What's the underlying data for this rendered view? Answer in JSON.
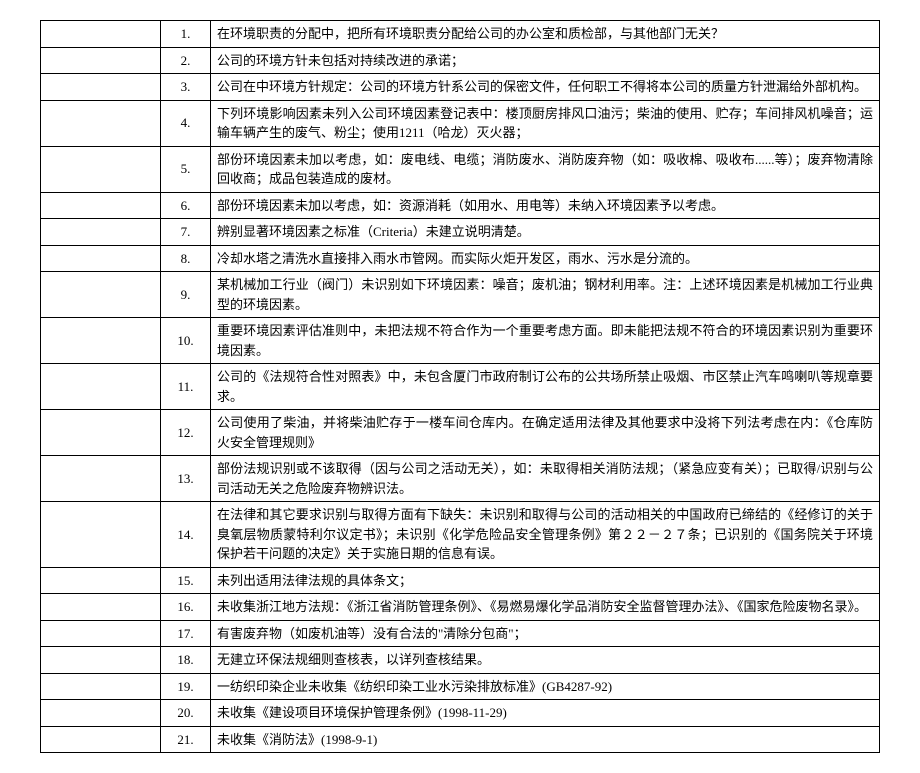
{
  "table": {
    "font_size_pt": 10,
    "border_color": "#000000",
    "background": "#ffffff",
    "text_color": "#000000",
    "rows": [
      {
        "num": "1.",
        "text": "在环境职责的分配中，把所有环境职责分配给公司的办公室和质检部，与其他部门无关？"
      },
      {
        "num": "2.",
        "text": "公司的环境方针未包括对持续改进的承诺；"
      },
      {
        "num": "3.",
        "text": "公司在中环境方针规定：公司的环境方针系公司的保密文件，任何职工不得将本公司的质量方针泄漏给外部机构。"
      },
      {
        "num": "4.",
        "text": "下列环境影响因素未列入公司环境因素登记表中：楼顶厨房排风口油污；柴油的使用、贮存；车间排风机噪音；运输车辆产生的废气、粉尘；使用1211（哈龙）灭火器；"
      },
      {
        "num": "5.",
        "text": "部份环境因素未加以考虑，如：废电线、电缆；消防废水、消防废弃物（如：吸收棉、吸收布......等）；废弃物清除回收商；成品包装造成的废材。"
      },
      {
        "num": "6.",
        "text": "部份环境因素未加以考虑，如：资源消耗（如用水、用电等）未纳入环境因素予以考虑。"
      },
      {
        "num": "7.",
        "text": "辨别显著环境因素之标准（Criteria）未建立说明清楚。"
      },
      {
        "num": "8.",
        "text": "冷却水塔之清洗水直接排入雨水市管网。而实际火炬开发区，雨水、污水是分流的。"
      },
      {
        "num": "9.",
        "text": "某机械加工行业（阀门）未识别如下环境因素：噪音；废机油；钢材利用率。注：上述环境因素是机械加工行业典型的环境因素。"
      },
      {
        "num": "10.",
        "text": "重要环境因素评估准则中，未把法规不符合作为一个重要考虑方面。即未能把法规不符合的环境因素识别为重要环境因素。"
      },
      {
        "num": "11.",
        "text": "公司的《法规符合性对照表》中，未包含厦门市政府制订公布的公共场所禁止吸烟、市区禁止汽车鸣喇叭等规章要求。"
      },
      {
        "num": "12.",
        "text": "公司使用了柴油，并将柴油贮存于一楼车间仓库内。在确定适用法律及其他要求中没将下列法考虑在内：《仓库防火安全管理规则》"
      },
      {
        "num": "13.",
        "text": "部份法规识别或不该取得（因与公司之活动无关），如：未取得相关消防法规；（紧急应变有关）；已取得/识别与公司活动无关之危险废弃物辨识法。"
      },
      {
        "num": "14.",
        "text": "在法律和其它要求识别与取得方面有下缺失：未识别和取得与公司的活动相关的中国政府已缔结的《经修订的关于臭氧层物质蒙特利尔议定书》；未识别《化学危险品安全管理条例》第２２－２７条；已识别的《国务院关于环境保护若干问题的决定》关于实施日期的信息有误。"
      },
      {
        "num": "15.",
        "text": "未列出适用法律法规的具体条文；"
      },
      {
        "num": "16.",
        "text": "未收集浙江地方法规：《浙江省消防管理条例》、《易燃易爆化学品消防安全监督管理办法》、《国家危险废物名录》。"
      },
      {
        "num": "17.",
        "text": "有害废弃物（如废机油等）没有合法的\"清除分包商\"；"
      },
      {
        "num": "18.",
        "text": "无建立环保法规细则查核表，以详列查核结果。"
      },
      {
        "num": "19.",
        "text": "一纺织印染企业未收集《纺织印染工业水污染排放标准》(GB4287-92)"
      },
      {
        "num": "20.",
        "text": "未收集《建设项目环境保护管理条例》(1998-11-29)"
      },
      {
        "num": "21.",
        "text": "未收集《消防法》(1998-9-1)"
      }
    ]
  }
}
